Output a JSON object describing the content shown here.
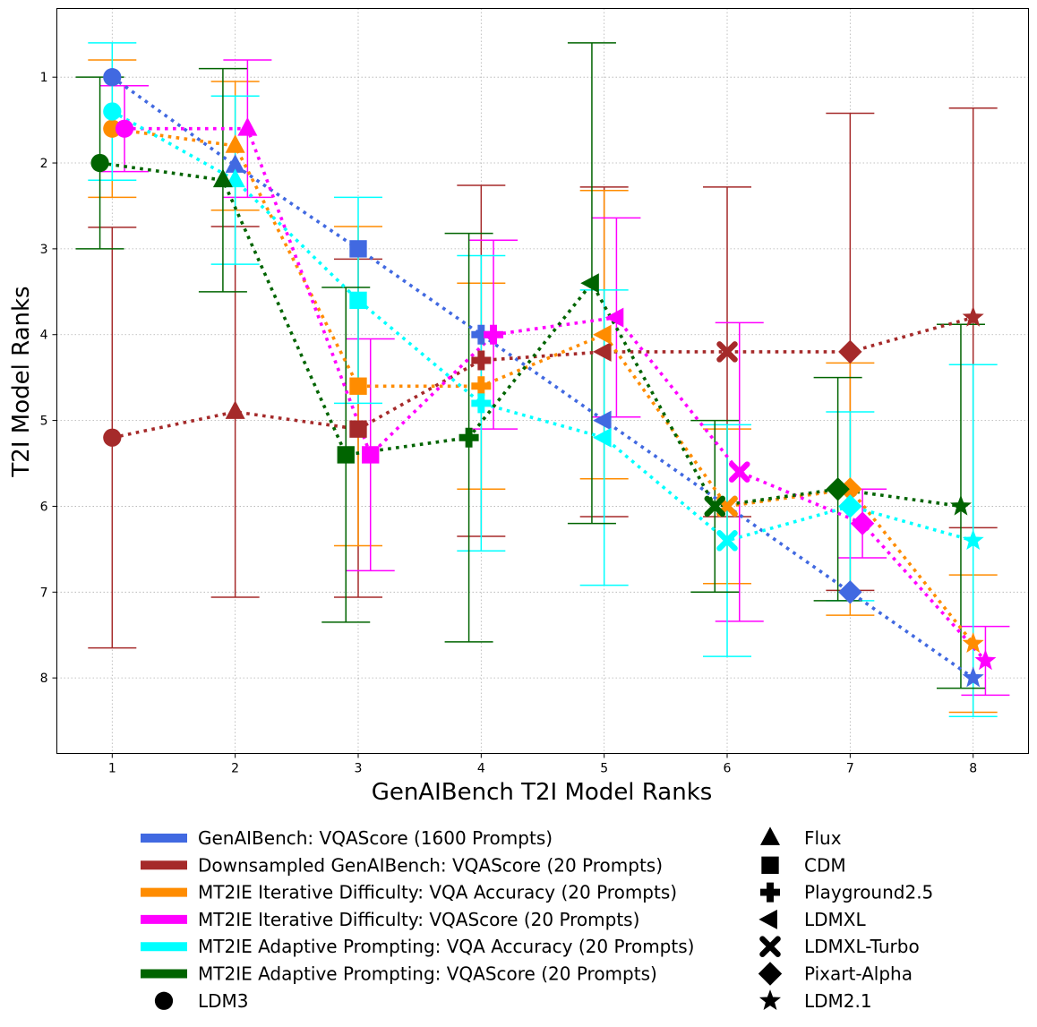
{
  "chart_data": {
    "type": "scatter",
    "xlabel": "GenAIBench T2I Model Ranks",
    "ylabel": "T2I Model Ranks",
    "xlim": [
      0.55,
      8.45
    ],
    "ylim": [
      8.88,
      0.2
    ],
    "y_inverted": true,
    "xticks": [
      1,
      2,
      3,
      4,
      5,
      6,
      7,
      8
    ],
    "yticks": [
      1,
      2,
      3,
      4,
      5,
      6,
      7,
      8
    ],
    "grid": true,
    "models": [
      {
        "name": "LDM3",
        "marker": "circle"
      },
      {
        "name": "Flux",
        "marker": "triangle-up"
      },
      {
        "name": "CDM",
        "marker": "square"
      },
      {
        "name": "Playground2.5",
        "marker": "plus"
      },
      {
        "name": "LDMXL",
        "marker": "triangle-left"
      },
      {
        "name": "LDMXL-Turbo",
        "marker": "x"
      },
      {
        "name": "Pixart-Alpha",
        "marker": "diamond"
      },
      {
        "name": "LDM2.1",
        "marker": "star"
      }
    ],
    "series": [
      {
        "name": "GenAIBench: VQAScore (1600 Prompts)",
        "color": "#4169e1",
        "offset": 0.0,
        "x": [
          1,
          2,
          3,
          4,
          5,
          6,
          7,
          8
        ],
        "y": [
          1.0,
          2.03,
          3.0,
          4.0,
          5.0,
          6.0,
          7.0,
          8.0
        ],
        "err": null
      },
      {
        "name": "Downsampled GenAIBench: VQAScore (20 Prompts)",
        "color": "#a52a2a",
        "offset": 0.0,
        "x": [
          1,
          2,
          3,
          4,
          5,
          6,
          7,
          8
        ],
        "y": [
          5.2,
          4.9,
          5.1,
          4.3,
          4.2,
          4.2,
          4.2,
          3.8
        ],
        "err": [
          [
            2.75,
            7.65
          ],
          [
            2.74,
            7.06
          ],
          [
            3.12,
            7.06
          ],
          [
            2.26,
            6.35
          ],
          [
            2.28,
            6.12
          ],
          [
            2.28,
            6.12
          ],
          [
            1.42,
            6.98
          ],
          [
            1.36,
            6.25
          ]
        ]
      },
      {
        "name": "MT2IE Iterative Difficulty: VQA Accuracy (20 Prompts)",
        "color": "#ff8c00",
        "offset": 0.0,
        "x": [
          1,
          2,
          3,
          4,
          5,
          6,
          7,
          8
        ],
        "y": [
          1.6,
          1.8,
          4.6,
          4.6,
          4.0,
          6.0,
          5.8,
          7.6
        ],
        "err": [
          [
            0.8,
            2.4
          ],
          [
            1.05,
            2.55
          ],
          [
            2.74,
            6.46
          ],
          [
            3.4,
            5.8
          ],
          [
            2.32,
            5.68
          ],
          [
            5.1,
            6.9
          ],
          [
            4.33,
            7.27
          ],
          [
            6.8,
            8.4
          ]
        ]
      },
      {
        "name": "MT2IE Iterative Difficulty: VQAScore (20 Prompts)",
        "color": "#ff00ff",
        "offset": 0.1,
        "x": [
          1,
          2,
          3,
          4,
          5,
          6,
          7,
          8
        ],
        "y": [
          1.6,
          1.6,
          5.4,
          4.0,
          3.8,
          5.6,
          6.2,
          7.8
        ],
        "err": [
          [
            1.1,
            2.1
          ],
          [
            0.8,
            2.4
          ],
          [
            4.05,
            6.75
          ],
          [
            2.9,
            5.1
          ],
          [
            2.64,
            4.96
          ],
          [
            3.86,
            7.34
          ],
          [
            5.8,
            6.6
          ],
          [
            7.4,
            8.2
          ]
        ]
      },
      {
        "name": "MT2IE Adaptive Prompting: VQA Accuracy (20 Prompts)",
        "color": "#00ffff",
        "offset": 0.0,
        "x": [
          1,
          2,
          3,
          4,
          5,
          6,
          7,
          8
        ],
        "y": [
          1.4,
          2.2,
          3.6,
          4.8,
          5.2,
          6.4,
          6.0,
          6.4
        ],
        "err": [
          [
            0.6,
            2.2
          ],
          [
            1.22,
            3.18
          ],
          [
            2.4,
            4.8
          ],
          [
            3.08,
            6.52
          ],
          [
            3.48,
            6.92
          ],
          [
            5.05,
            7.75
          ],
          [
            4.9,
            7.1
          ],
          [
            4.35,
            8.45
          ]
        ]
      },
      {
        "name": "MT2IE Adaptive Prompting: VQAScore (20 Prompts)",
        "color": "#006400",
        "offset": -0.1,
        "x": [
          1,
          2,
          3,
          4,
          5,
          6,
          7,
          8
        ],
        "y": [
          2.0,
          2.2,
          5.4,
          5.2,
          3.4,
          6.0,
          5.8,
          6.0
        ],
        "err": [
          [
            1.0,
            3.0
          ],
          [
            0.9,
            3.5
          ],
          [
            3.45,
            7.35
          ],
          [
            2.82,
            7.58
          ],
          [
            0.6,
            6.2
          ],
          [
            5.0,
            7.0
          ],
          [
            4.5,
            7.1
          ],
          [
            3.88,
            8.12
          ]
        ]
      }
    ],
    "legend": {
      "position": "bottom",
      "series_entries": [
        "GenAIBench: VQAScore (1600 Prompts)",
        "Downsampled GenAIBench: VQAScore (20 Prompts)",
        "MT2IE Iterative Difficulty: VQA Accuracy (20 Prompts)",
        "MT2IE Iterative Difficulty: VQAScore (20 Prompts)",
        "MT2IE Adaptive Prompting: VQA Accuracy (20 Prompts)",
        "MT2IE Adaptive Prompting: VQAScore (20 Prompts)"
      ],
      "marker_entries": [
        "LDM3",
        "Flux",
        "CDM",
        "Playground2.5",
        "LDMXL",
        "LDMXL-Turbo",
        "Pixart-Alpha",
        "LDM2.1"
      ]
    }
  }
}
